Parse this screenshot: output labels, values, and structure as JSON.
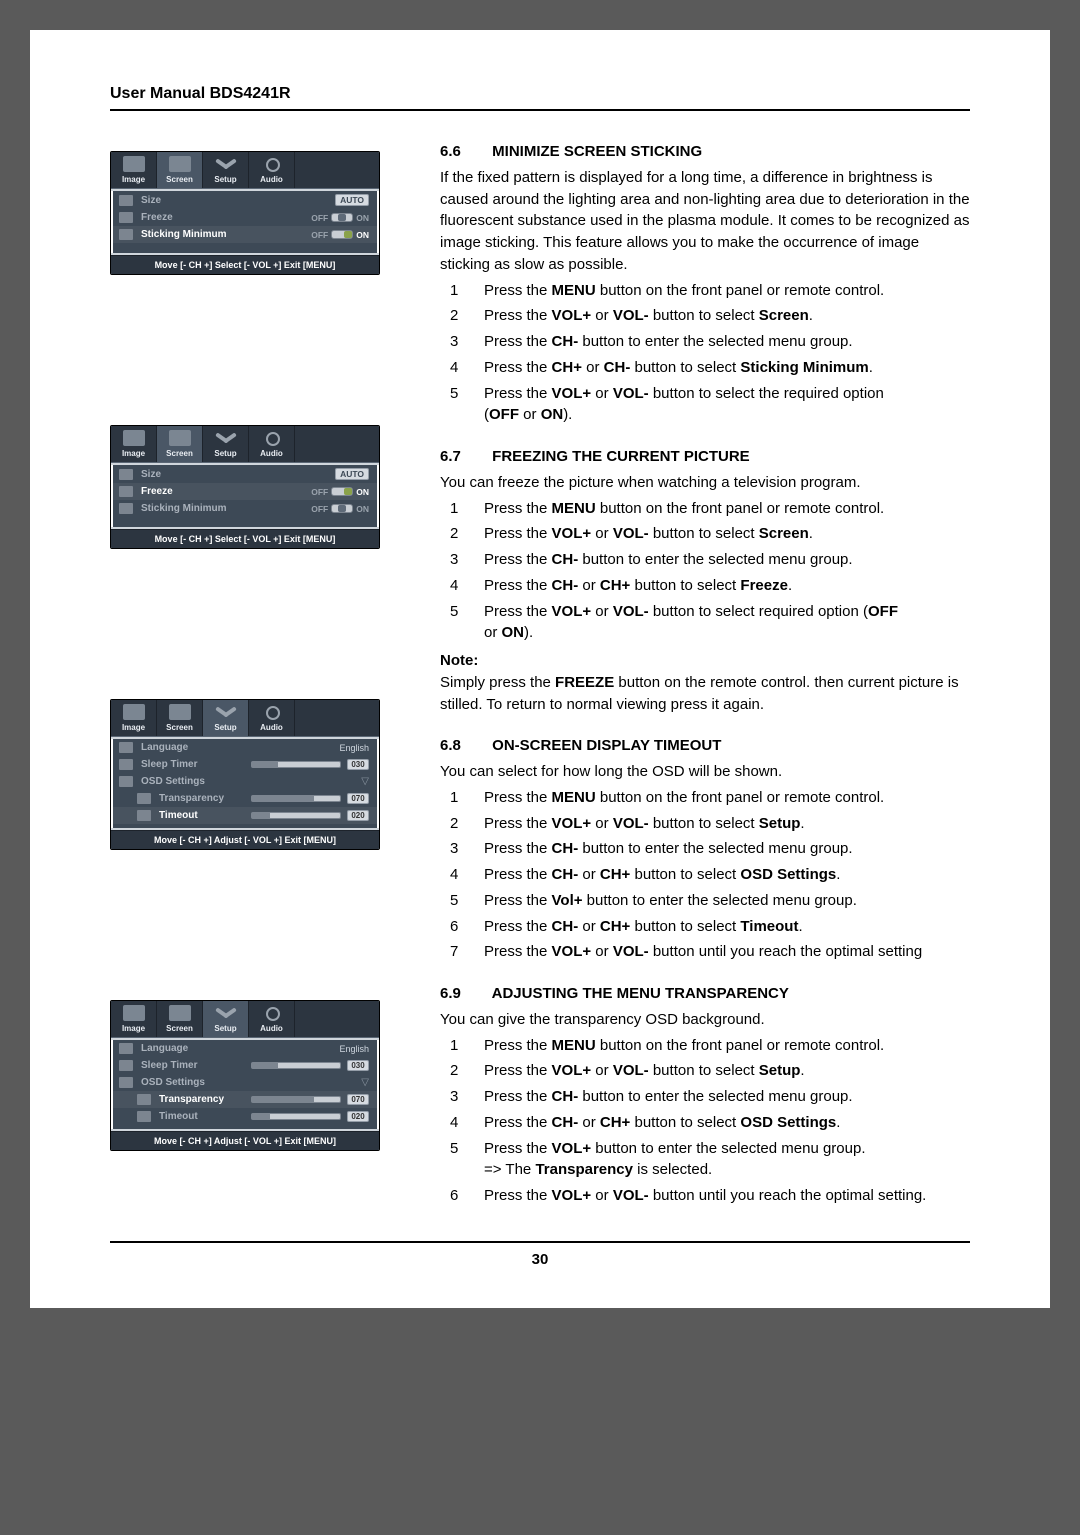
{
  "header": "User Manual BDS4241R",
  "page_number": "30",
  "osd": {
    "tabs": {
      "image": "Image",
      "screen": "Screen",
      "setup": "Setup",
      "audio": "Audio"
    },
    "footer_select": "Move [- CH +]     Select [- VOL +]     Exit [MENU]",
    "footer_adjust": "Move [- CH +]     Adjust [- VOL +]     Exit [MENU]",
    "screen_menu": {
      "size": "Size",
      "freeze": "Freeze",
      "sticking": "Sticking Minimum",
      "auto": "AUTO",
      "off": "OFF",
      "on": "ON"
    },
    "setup_menu": {
      "language": "Language",
      "language_val": "English",
      "sleep": "Sleep Timer",
      "sleep_val": "030",
      "osd_settings": "OSD Settings",
      "transparency": "Transparency",
      "transparency_val": "070",
      "timeout": "Timeout",
      "timeout_val": "020"
    }
  },
  "s66": {
    "title_num": "6.6",
    "title": "MINIMIZE SCREEN STICKING",
    "intro": "If the fixed pattern is displayed for a long time, a difference in brightness is caused around the lighting area and non-lighting area due to deterioration in the fluorescent substance used in the plasma module. It comes to be recognized as image sticking. This feature allows you to make the occurrence of image sticking as slow as possible.",
    "steps": {
      "1": [
        "Press the ",
        "MENU",
        " button on the front panel or remote control."
      ],
      "2": [
        "Press the ",
        "VOL+",
        " or ",
        "VOL-",
        " button to select ",
        "Screen",
        "."
      ],
      "3": [
        "Press the ",
        "CH-",
        " button to enter the selected menu group."
      ],
      "4": [
        "Press the ",
        "CH+",
        " or ",
        "CH-",
        " button to select ",
        "Sticking Minimum",
        "."
      ],
      "5a": [
        "Press the ",
        "VOL+",
        " or ",
        "VOL-",
        " button to select the required option"
      ],
      "5b": [
        "(",
        "OFF",
        " or ",
        "ON",
        ")."
      ]
    }
  },
  "s67": {
    "title_num": "6.7",
    "title": "FREEZING THE CURRENT PICTURE",
    "intro": "You can freeze the picture when watching a television program.",
    "steps": {
      "1": [
        "Press the ",
        "MENU",
        " button on the front panel or remote control."
      ],
      "2": [
        "Press the ",
        "VOL+",
        " or ",
        "VOL-",
        " button to select ",
        "Screen",
        "."
      ],
      "3": [
        "Press the ",
        "CH-",
        " button to enter the selected menu group."
      ],
      "4": [
        "Press the ",
        "CH-",
        " or ",
        "CH+",
        " button to select ",
        "Freeze",
        "."
      ],
      "5a": [
        "Press the ",
        "VOL+",
        " or ",
        "VOL-",
        " button to select required option (",
        "OFF"
      ],
      "5b": [
        " or ",
        "ON",
        ")."
      ]
    },
    "note_label": "Note:",
    "note": [
      "Simply press the ",
      "FREEZE",
      " button on the remote control. then current picture is stilled. To return to normal viewing press it again."
    ]
  },
  "s68": {
    "title_num": "6.8",
    "title": "ON-SCREEN DISPLAY TIMEOUT",
    "intro": "You can select for how long the OSD will be shown.",
    "steps": {
      "1": [
        "Press the ",
        "MENU",
        " button on the front panel or remote control."
      ],
      "2": [
        "Press the ",
        "VOL+",
        " or ",
        "VOL-",
        " button to select ",
        "Setup",
        "."
      ],
      "3": [
        "Press the ",
        "CH-",
        " button to enter the selected menu group."
      ],
      "4": [
        "Press the ",
        "CH-",
        " or ",
        "CH+",
        " button to select ",
        "OSD Settings",
        "."
      ],
      "5": [
        "Press the ",
        "Vol+",
        " button to enter the selected menu group."
      ],
      "6": [
        "Press the ",
        "CH-",
        " or ",
        "CH+",
        " button to select ",
        "Timeout",
        "."
      ],
      "7": [
        "Press the ",
        "VOL+",
        " or ",
        "VOL-",
        " button until you reach the optimal setting"
      ]
    }
  },
  "s69": {
    "title_num": "6.9",
    "title": "ADJUSTING THE MENU TRANSPARENCY",
    "intro": "You can give the transparency OSD background.",
    "steps": {
      "1": [
        "Press the ",
        "MENU",
        " button on the front panel or remote control."
      ],
      "2": [
        "Press the ",
        "VOL+",
        " or ",
        "VOL-",
        " button to select ",
        "Setup",
        "."
      ],
      "3": [
        "Press the ",
        "CH-",
        " button to enter the selected menu group."
      ],
      "4": [
        "Press the ",
        "CH-",
        " or ",
        "CH+",
        " button to select ",
        "OSD Settings",
        "."
      ],
      "5a": [
        "Press the ",
        "VOL+",
        " button to enter the selected menu group."
      ],
      "5b": [
        "=> The ",
        "Transparency",
        " is selected."
      ],
      "6": [
        "Press the ",
        "VOL+",
        " or ",
        "VOL-",
        " button until you reach the optimal setting."
      ]
    }
  }
}
